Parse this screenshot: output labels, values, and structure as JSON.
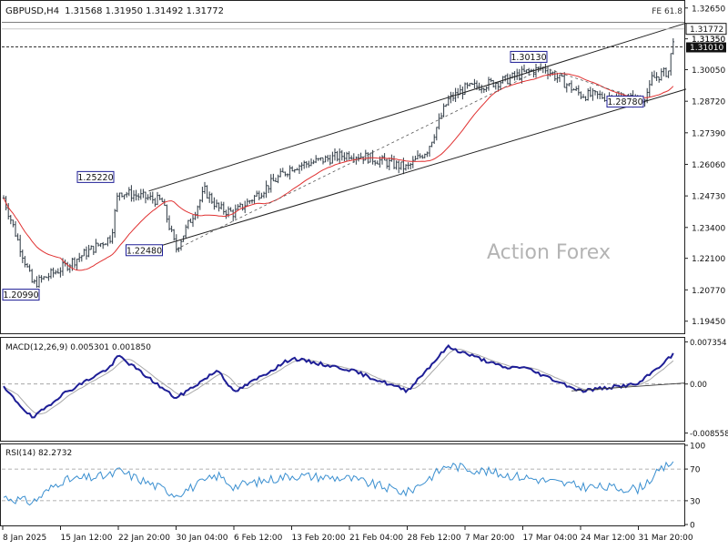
{
  "header": {
    "symbol_tf": "GBPUSD,H4",
    "ohlc": "1.31568 1.31950 1.31492 1.31772",
    "fib_label": "FE 61.8"
  },
  "watermark": "Action Forex",
  "colors": {
    "price_bars": "#2f3a44",
    "ma": "#e03030",
    "macd_main": "#1e1e96",
    "macd_signal": "#a8a8a8",
    "rsi": "#3a8fd0",
    "channel": "#222222",
    "label_border": "#1e1e96"
  },
  "chart_data": [
    {
      "type": "candlestick",
      "name": "price",
      "ylim": [
        1.1894,
        1.3291
      ],
      "y_ticks": [
        "1.32650",
        "1.31350",
        "1.30050",
        "1.28720",
        "1.27390",
        "1.26060",
        "1.24730",
        "1.23400",
        "1.22100",
        "1.20770",
        "1.19450"
      ],
      "x_ticks": [
        "8 Jan 2025",
        "15 Jan 12:00",
        "22 Jan 20:00",
        "30 Jan 04:00",
        "6 Feb 12:00",
        "13 Feb 20:00",
        "21 Feb 04:00",
        "28 Feb 12:00",
        "7 Mar 20:00",
        "17 Mar 04:00",
        "24 Mar 12:00",
        "31 Mar 20:00"
      ],
      "current_price": "1.31772",
      "level_labels": [
        {
          "text": "1.31350",
          "value": 1.3135
        },
        {
          "text": "1.31010",
          "value": 1.3101
        }
      ],
      "price_anchors": [
        {
          "t": "8 Jan 2025",
          "close": 1.2475
        },
        {
          "t": "13 Jan",
          "close": 1.2099
        },
        {
          "t": "15 Jan 12:00",
          "close": 1.2165
        },
        {
          "t": "20 Jan",
          "close": 1.23
        },
        {
          "t": "22 Jan 20:00",
          "close": 1.2492
        },
        {
          "t": "27 Jan",
          "close": 1.245
        },
        {
          "t": "30 Jan 04:00",
          "close": 1.2248
        },
        {
          "t": "31 Jan",
          "close": 1.2495
        },
        {
          "t": "3 Feb",
          "close": 1.242
        },
        {
          "t": "6 Feb 12:00",
          "close": 1.24
        },
        {
          "t": "13 Feb 20:00",
          "close": 1.2595
        },
        {
          "t": "21 Feb 04:00",
          "close": 1.265
        },
        {
          "t": "24 Feb",
          "close": 1.2635
        },
        {
          "t": "28 Feb 12:00",
          "close": 1.259
        },
        {
          "t": "3 Mar",
          "close": 1.267
        },
        {
          "t": "5 Mar",
          "close": 1.2875
        },
        {
          "t": "7 Mar 20:00",
          "close": 1.2925
        },
        {
          "t": "12 Mar",
          "close": 1.296
        },
        {
          "t": "17 Mar 04:00",
          "close": 1.299
        },
        {
          "t": "20 Mar",
          "close": 1.3013
        },
        {
          "t": "24 Mar 12:00",
          "close": 1.29
        },
        {
          "t": "27 Mar",
          "close": 1.2878
        },
        {
          "t": "28 Mar",
          "close": 1.293
        },
        {
          "t": "31 Mar 20:00",
          "close": 1.294
        },
        {
          "t": "1 Apr",
          "close": 1.3
        },
        {
          "t": "2 Apr",
          "close": 1.3177
        }
      ],
      "annotations": [
        {
          "text": "1.20990",
          "t": "13 Jan",
          "value": 1.2099
        },
        {
          "text": "1.25220",
          "t": "22 Jan 20:00",
          "value": 1.2522
        },
        {
          "text": "1.22480",
          "t": "30 Jan 04:00",
          "value": 1.2248
        },
        {
          "text": "1.30130",
          "t": "20 Mar",
          "value": 1.3013
        },
        {
          "text": "1.28780",
          "t": "27 Mar",
          "value": 1.2878
        }
      ],
      "channel": {
        "upper": [
          {
            "t": "30 Jan 04:00",
            "value": 1.2505
          },
          {
            "t": "2 Apr",
            "value": 1.319
          }
        ],
        "lower": [
          {
            "t": "30 Jan 04:00",
            "value": 1.2248
          },
          {
            "t": "2 Apr",
            "value": 1.29
          }
        ]
      }
    },
    {
      "type": "line",
      "name": "MACD",
      "title": "MACD(12,26,9) 0.005301 0.001850",
      "ylim": [
        -0.0099,
        0.0079
      ],
      "y_ticks": [
        "0.007354",
        "0.00",
        "-0.008558"
      ],
      "anchors": [
        {
          "t": "8 Jan 2025",
          "value": -0.0005
        },
        {
          "t": "13 Jan",
          "value": -0.006
        },
        {
          "t": "15 Jan 12:00",
          "value": -0.002
        },
        {
          "t": "20 Jan",
          "value": 0.003
        },
        {
          "t": "22 Jan 20:00",
          "value": 0.005
        },
        {
          "t": "30 Jan 04:00",
          "value": -0.0025
        },
        {
          "t": "3 Feb",
          "value": 0.0025
        },
        {
          "t": "6 Feb 12:00",
          "value": -0.0015
        },
        {
          "t": "13 Feb 20:00",
          "value": 0.0045
        },
        {
          "t": "21 Feb 04:00",
          "value": 0.0025
        },
        {
          "t": "28 Feb 12:00",
          "value": -0.0012
        },
        {
          "t": "5 Mar",
          "value": 0.0065
        },
        {
          "t": "12 Mar",
          "value": 0.0028
        },
        {
          "t": "17 Mar 04:00",
          "value": 0.003
        },
        {
          "t": "24 Mar 12:00",
          "value": -0.0012
        },
        {
          "t": "31 Mar 20:00",
          "value": 0.0
        },
        {
          "t": "2 Apr",
          "value": 0.0053
        }
      ]
    },
    {
      "type": "line",
      "name": "RSI",
      "title": "RSI(14) 82.2732",
      "ylim": [
        0,
        100
      ],
      "y_ticks": [
        "100",
        "70",
        "30",
        "0"
      ],
      "anchors": [
        {
          "t": "8 Jan 2025",
          "value": 35
        },
        {
          "t": "13 Jan",
          "value": 28
        },
        {
          "t": "15 Jan 12:00",
          "value": 55
        },
        {
          "t": "20 Jan",
          "value": 62
        },
        {
          "t": "22 Jan 20:00",
          "value": 68
        },
        {
          "t": "30 Jan 04:00",
          "value": 38
        },
        {
          "t": "3 Feb",
          "value": 62
        },
        {
          "t": "6 Feb 12:00",
          "value": 48
        },
        {
          "t": "13 Feb 20:00",
          "value": 62
        },
        {
          "t": "21 Feb 04:00",
          "value": 58
        },
        {
          "t": "28 Feb 12:00",
          "value": 40
        },
        {
          "t": "5 Mar",
          "value": 75
        },
        {
          "t": "12 Mar",
          "value": 63
        },
        {
          "t": "17 Mar 04:00",
          "value": 60
        },
        {
          "t": "24 Mar 12:00",
          "value": 48
        },
        {
          "t": "31 Mar 20:00",
          "value": 45
        },
        {
          "t": "2 Apr",
          "value": 82
        }
      ]
    }
  ]
}
